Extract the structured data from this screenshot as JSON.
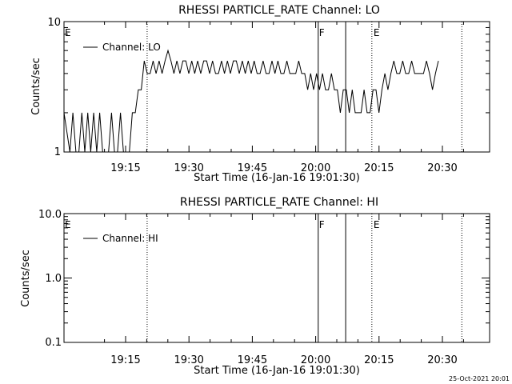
{
  "timestamp": "25-Oct-2021 20:01",
  "chart_data": [
    {
      "type": "line",
      "title": "RHESSI PARTICLE_RATE Channel: LO",
      "xlabel": "Start Time (16-Jan-16 19:01:30)",
      "ylabel": "Counts/sec",
      "yscale": "log",
      "ylim": [
        1,
        10
      ],
      "xlim_minutes": [
        5.0,
        44.5
      ],
      "x_ticks": [
        "19:15",
        "19:30",
        "19:45",
        "20:00",
        "20:15",
        "20:30"
      ],
      "y_ticks": [
        "1",
        "10"
      ],
      "legend": "Channel: LO",
      "legend_position": "top-left",
      "grid": false,
      "flags": [
        {
          "label": "E",
          "x": 5.0
        },
        {
          "label": "F",
          "x": 20.1
        },
        {
          "label": "E",
          "x": 20.25
        }
      ],
      "series": [
        {
          "name": "Channel: LO",
          "x_minutes_after_19:00": [
            5.0,
            5.5,
            5.75,
            6.0,
            6.25,
            6.5,
            6.75,
            7.0,
            7.25,
            7.5,
            7.75,
            8.0,
            8.25,
            8.5,
            8.75,
            9.0,
            9.25,
            9.5,
            9.75,
            10.0,
            10.25,
            10.5,
            10.75,
            11.0,
            11.25,
            11.5,
            11.75,
            12.0,
            12.25,
            12.5,
            12.75,
            13.0,
            13.25,
            13.5,
            13.75,
            14.0,
            14.25,
            14.5,
            14.75,
            15.0,
            15.25,
            15.5,
            15.75,
            16.0,
            16.25,
            16.5,
            16.75,
            17.0,
            17.25,
            17.5,
            17.75,
            18.0,
            18.25,
            18.5,
            18.75,
            19.0,
            19.25,
            19.5,
            19.75,
            20.0,
            20.25,
            20.5,
            20.75,
            21.0,
            21.25,
            21.5,
            21.75,
            22.0,
            22.25,
            22.5,
            22.75,
            23.0,
            23.25,
            23.5,
            23.75,
            24.0,
            24.25,
            24.5,
            24.75,
            25.0,
            25.25,
            25.5,
            25.75,
            26.0,
            26.25,
            26.5,
            26.75,
            27.0,
            27.25,
            27.5,
            27.75,
            28.0,
            28.25,
            28.5,
            28.75,
            29.0,
            29.25,
            29.5,
            29.75,
            30.0,
            30.25,
            30.5,
            30.75,
            31.0,
            31.25,
            31.5,
            31.75,
            32.0,
            32.25,
            32.5,
            32.75,
            33.0,
            33.25,
            33.5,
            33.75,
            34.0,
            34.25,
            34.5,
            34.75,
            35.0,
            35.25,
            35.5,
            35.75,
            36.0,
            36.25,
            36.5
          ],
          "values": [
            2,
            1,
            2,
            1,
            1,
            2,
            1,
            2,
            1,
            2,
            1,
            2,
            1,
            1,
            1,
            2,
            1,
            1,
            2,
            1,
            1,
            1,
            2,
            2,
            3,
            3,
            5,
            4,
            4,
            5,
            4,
            5,
            4,
            5,
            6,
            5,
            4,
            5,
            4,
            5,
            5,
            4,
            5,
            4,
            5,
            4,
            5,
            5,
            4,
            5,
            4,
            4,
            5,
            4,
            5,
            4,
            5,
            5,
            4,
            5,
            4,
            5,
            4,
            5,
            4,
            4,
            5,
            4,
            4,
            5,
            4,
            5,
            4,
            4,
            5,
            4,
            4,
            4,
            5,
            4,
            4,
            3,
            4,
            3,
            4,
            3,
            4,
            3,
            3,
            4,
            3,
            3,
            2,
            3,
            3,
            2,
            3,
            2,
            2,
            2,
            3,
            2,
            2,
            3,
            3,
            2,
            3,
            4,
            3,
            4,
            5,
            4,
            4,
            5,
            4,
            4,
            5,
            4,
            4,
            4,
            4,
            5,
            4,
            3,
            4,
            5
          ]
        }
      ]
    },
    {
      "type": "line",
      "title": "RHESSI PARTICLE_RATE Channel: HI",
      "xlabel": "Start Time (16-Jan-16 19:01:30)",
      "ylabel": "Counts/sec",
      "yscale": "log",
      "ylim": [
        0.1,
        10.0
      ],
      "x_ticks": [
        "19:15",
        "19:30",
        "19:45",
        "20:00",
        "20:15",
        "20:30"
      ],
      "y_ticks": [
        "10.0",
        "1.0",
        "0.1"
      ],
      "legend": "Channel: HI",
      "legend_position": "top-left",
      "grid": false,
      "flags": [
        {
          "label": "E"
        },
        {
          "label": "F"
        },
        {
          "label": "E"
        }
      ],
      "series": [
        {
          "name": "Channel: HI",
          "values": []
        }
      ]
    }
  ]
}
